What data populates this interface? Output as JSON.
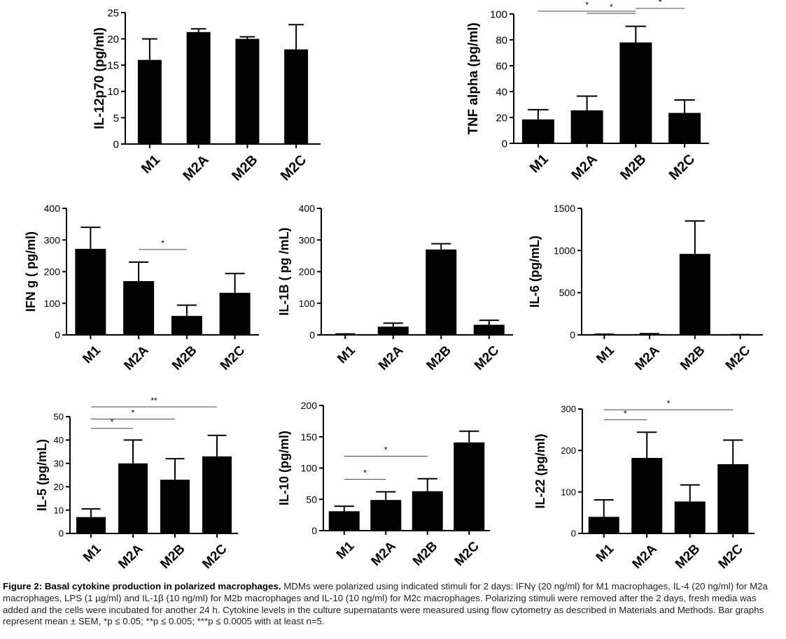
{
  "figure": {
    "caption_label": "Figure 2:",
    "caption_title": "Basal cytokine production in polarized macrophages.",
    "caption_text": "MDMs were polarized using indicated stimuli for 2 days: IFNγ (20 ng/ml) for M1 macrophages, IL-4 (20 ng/ml) for M2a macrophages, LPS (1 µg/ml) and IL-1β (10 ng/ml) for M2b macrophages and IL-10 (10 ng/ml) for M2c macrophages. Polarizing stimuli were removed after the 2 days, fresh media was added and the cells were incubated for another 24 h. Cytokine levels in the culture supernatants were measured using flow cytometry as described in Materials and Methods. Bar graphs represent mean ± SEM, *p ≤ 0.05; **p ≤ 0.005; ***p ≤ 0.0005 with at least n=5."
  },
  "chart_data": [
    {
      "type": "bar",
      "ylabel": "IL-12p70 (pg/ml)",
      "categories": [
        "M1",
        "M2A",
        "M2B",
        "M2C"
      ],
      "values": [
        16,
        21.3,
        20,
        18
      ],
      "errors": [
        4,
        0.6,
        0.4,
        4.7
      ],
      "ylim": [
        0,
        25
      ],
      "yticks": [
        0,
        5,
        10,
        15,
        20,
        25
      ],
      "significance": []
    },
    {
      "type": "bar",
      "ylabel": "TNF alpha (pg/ml)",
      "categories": [
        "M1",
        "M2A",
        "M2B",
        "M2C"
      ],
      "values": [
        18.5,
        25.5,
        78,
        23.5
      ],
      "errors": [
        7.5,
        11,
        12.5,
        10
      ],
      "ylim": [
        0,
        100
      ],
      "yticks": [
        0,
        20,
        40,
        60,
        80,
        100
      ],
      "significance": [
        {
          "from": 0,
          "to": 2,
          "label": "*"
        },
        {
          "from": 1,
          "to": 2,
          "label": "*"
        },
        {
          "from": 2,
          "to": 3,
          "label": "*"
        }
      ]
    },
    {
      "type": "bar",
      "ylabel": "IFN g ( pg/ml)",
      "categories": [
        "M1",
        "M2A",
        "M2B",
        "M2C"
      ],
      "values": [
        272,
        170,
        60,
        133
      ],
      "errors": [
        68,
        60,
        34,
        61
      ],
      "ylim": [
        0,
        400
      ],
      "yticks": [
        0,
        100,
        200,
        300,
        400
      ],
      "significance": [
        {
          "from": 1,
          "to": 2,
          "label": "*"
        }
      ]
    },
    {
      "type": "bar",
      "ylabel": "IL-1B ( pg /mL)",
      "categories": [
        "M1",
        "M2A",
        "M2B",
        "M2C"
      ],
      "values": [
        2,
        26,
        270,
        32
      ],
      "errors": [
        1,
        11,
        18,
        14
      ],
      "ylim": [
        0,
        400
      ],
      "yticks": [
        0,
        100,
        200,
        300,
        400
      ],
      "significance": []
    },
    {
      "type": "bar",
      "ylabel": "IL-6 (pg/mL)",
      "categories": [
        "M1",
        "M2A",
        "M2B",
        "M2C"
      ],
      "values": [
        5,
        10,
        960,
        2
      ],
      "errors": [
        3,
        5,
        390,
        1
      ],
      "ylim": [
        0,
        1500
      ],
      "yticks": [
        0,
        500,
        1000,
        1500
      ],
      "significance": []
    },
    {
      "type": "bar",
      "ylabel": "IL-5 (pg/mL)",
      "categories": [
        "M1",
        "M2A",
        "M2B",
        "M2C"
      ],
      "values": [
        7,
        30,
        23,
        33
      ],
      "errors": [
        3.5,
        10,
        9,
        9
      ],
      "ylim": [
        0,
        50
      ],
      "yticks": [
        0,
        10,
        20,
        30,
        40,
        50
      ],
      "significance": [
        {
          "from": 0,
          "to": 1,
          "label": "*"
        },
        {
          "from": 0,
          "to": 2,
          "label": "*"
        },
        {
          "from": 0,
          "to": 3,
          "label": "**"
        }
      ]
    },
    {
      "type": "bar",
      "ylabel": "IL-10 (pg/ml)",
      "categories": [
        "M1",
        "M2A",
        "M2B",
        "M2C"
      ],
      "values": [
        31,
        49,
        63,
        141
      ],
      "errors": [
        8,
        13,
        20,
        18
      ],
      "ylim": [
        0,
        200
      ],
      "yticks": [
        0,
        50,
        100,
        150,
        200
      ],
      "significance": [
        {
          "from": 0,
          "to": 1,
          "label": "*"
        },
        {
          "from": 0,
          "to": 2,
          "label": "*"
        }
      ]
    },
    {
      "type": "bar",
      "ylabel": "IL-22 (pg/ml)",
      "categories": [
        "M1",
        "M2A",
        "M2B",
        "M2C"
      ],
      "values": [
        40,
        182,
        77,
        167
      ],
      "errors": [
        41,
        62,
        40,
        58
      ],
      "ylim": [
        0,
        300
      ],
      "yticks": [
        0,
        100,
        200,
        300
      ],
      "significance": [
        {
          "from": 0,
          "to": 1,
          "label": "*"
        },
        {
          "from": 0,
          "to": 3,
          "label": "*"
        }
      ]
    }
  ]
}
